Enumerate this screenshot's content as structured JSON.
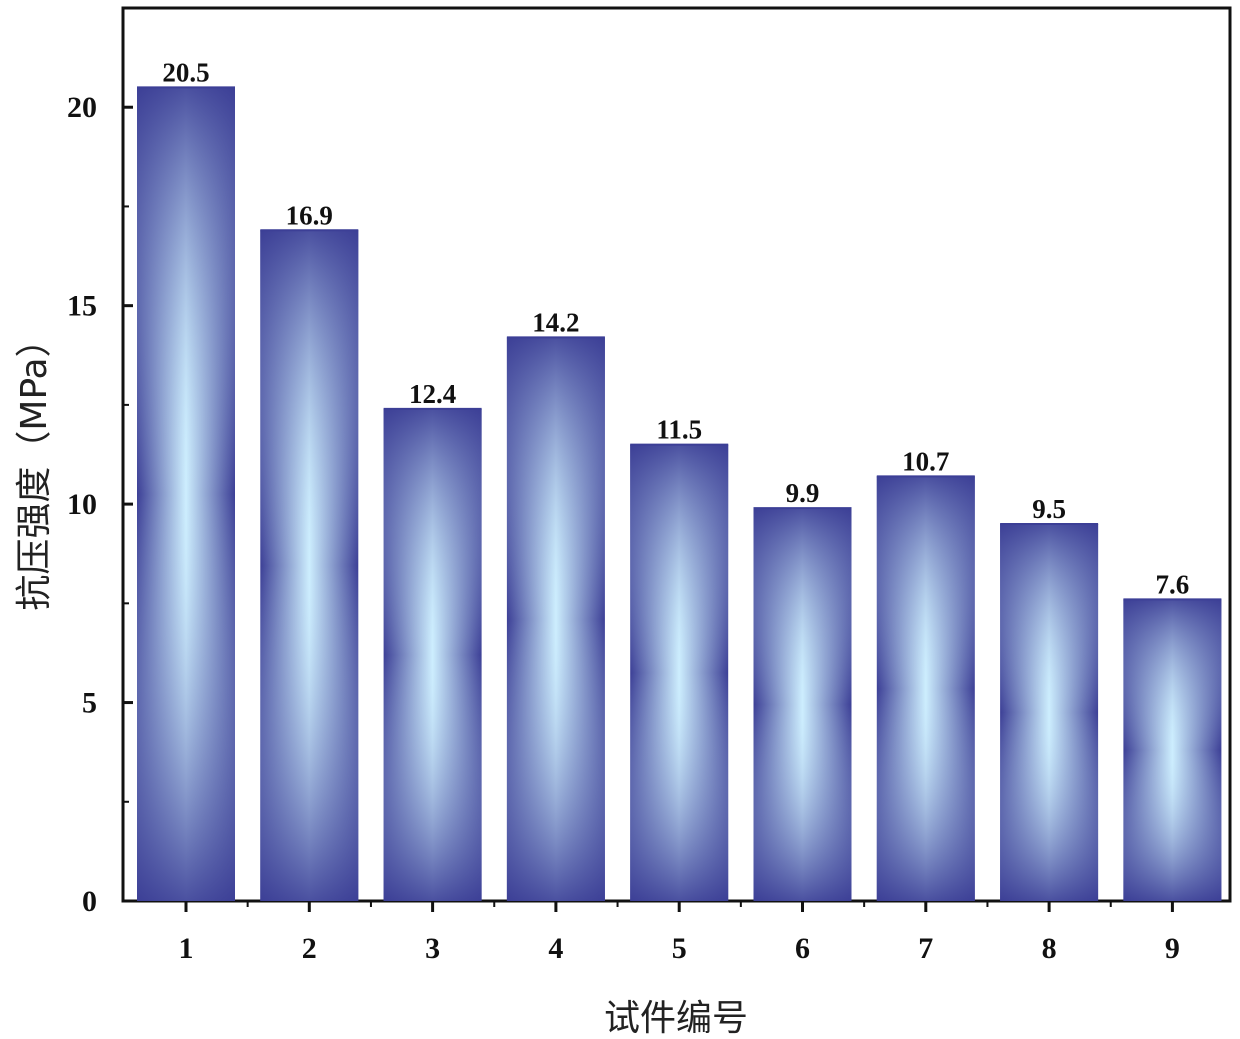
{
  "chart_data": {
    "type": "bar",
    "title": "",
    "xlabel": "试件编号",
    "ylabel": "抗压强度（MPa）",
    "categories": [
      "1",
      "2",
      "3",
      "4",
      "5",
      "6",
      "7",
      "8",
      "9"
    ],
    "values": [
      20.5,
      16.9,
      12.4,
      14.2,
      11.5,
      9.9,
      10.7,
      9.5,
      7.6
    ],
    "value_labels": [
      "20.5",
      "16.9",
      "12.4",
      "14.2",
      "11.5",
      "9.9",
      "10.7",
      "9.5",
      "7.6"
    ],
    "ylim": [
      0,
      22.5
    ],
    "yticks": [
      0,
      5,
      10,
      15,
      20
    ],
    "ytick_labels": [
      "0",
      "5",
      "10",
      "15",
      "20"
    ],
    "grid": false,
    "legend": "none",
    "colors": {
      "bar_edge": "#3c3f96",
      "bar_center": "#cdeefe",
      "axis": "#111111"
    }
  }
}
